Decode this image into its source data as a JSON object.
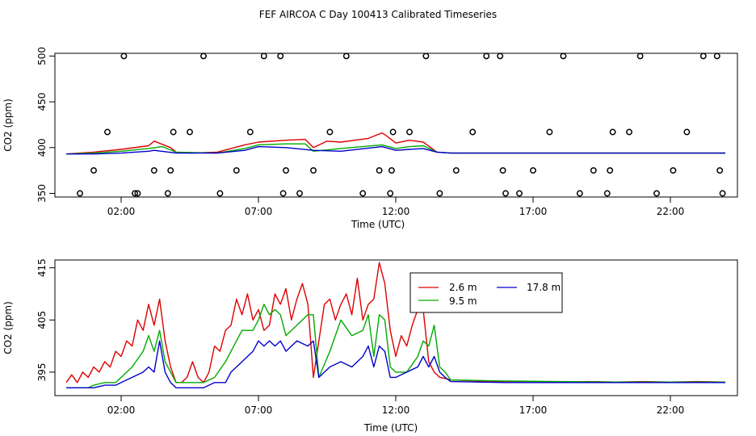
{
  "title": "FEF AIRCOA C  Day 100413  Calibrated Timeseries",
  "colors": {
    "s1": "#dd0000",
    "s2": "#00aa00",
    "s3": "#0000cc",
    "axis": "#000000"
  },
  "chart_data": [
    {
      "type": "line",
      "panel": "top",
      "xlabel": "Time (UTC)",
      "ylabel": "CO2 (ppm)",
      "xlim": [
        0,
        24
      ],
      "ylim": [
        346,
        503
      ],
      "xticks": [
        2,
        7,
        12,
        17,
        22
      ],
      "xtick_labels": [
        "02:00",
        "07:00",
        "12:00",
        "17:00",
        "22:00"
      ],
      "yticks": [
        350,
        400,
        450,
        500
      ],
      "ytick_labels": [
        "350",
        "400",
        "450",
        "500"
      ],
      "series": [
        {
          "name": "2.6 m",
          "color": "#dd0000",
          "x": [
            0,
            1,
            2,
            3,
            3.2,
            3.8,
            4,
            4.5,
            5.5,
            6.5,
            7,
            8,
            8.7,
            9,
            9.5,
            10,
            11,
            11.5,
            11.7,
            12,
            12.5,
            13,
            13.5,
            14,
            16,
            20,
            24
          ],
          "y": [
            393,
            395,
            398,
            402,
            407,
            400,
            395,
            394,
            395,
            403,
            406,
            408,
            409,
            400,
            407,
            406,
            410,
            416,
            412,
            405,
            408,
            406,
            395,
            394,
            394,
            394,
            394
          ]
        },
        {
          "name": "9.5 m",
          "color": "#00aa00",
          "x": [
            0,
            1,
            2,
            3,
            3.5,
            4,
            5.5,
            6.5,
            7,
            8,
            8.7,
            9,
            10,
            11.5,
            12,
            12.5,
            13,
            13.5,
            14,
            24
          ],
          "y": [
            393,
            394,
            396,
            399,
            401,
            395,
            394,
            399,
            403,
            404,
            404,
            396,
            399,
            403,
            399,
            401,
            402,
            395,
            394,
            394
          ]
        },
        {
          "name": "17.8 m",
          "color": "#0000cc",
          "x": [
            0,
            1,
            2,
            3,
            3.2,
            4,
            5.5,
            6.5,
            7,
            8,
            9,
            10,
            11.5,
            12,
            12.5,
            13,
            13.5,
            14,
            24
          ],
          "y": [
            393,
            393,
            394,
            396,
            397,
            394,
            394,
            397,
            401,
            400,
            397,
            396,
            401,
            397,
            398,
            399,
            395,
            394,
            394
          ]
        }
      ],
      "points": {
        "x": [
          0.5,
          1,
          1.5,
          2.1,
          2.5,
          2.6,
          3.2,
          3.7,
          3.8,
          3.9,
          4.5,
          5.0,
          5.6,
          6.2,
          6.7,
          7.2,
          7.8,
          7.9,
          8.0,
          8.5,
          9.0,
          9.6,
          10.2,
          10.8,
          11.4,
          11.8,
          11.85,
          11.9,
          12.5,
          13.1,
          13.6,
          14.2,
          14.8,
          15.3,
          15.8,
          15.9,
          16.0,
          16.5,
          17.0,
          17.6,
          18.1,
          18.7,
          19.2,
          19.7,
          19.8,
          19.9,
          20.5,
          20.9,
          21.5,
          22.1,
          22.6,
          23.2,
          23.7,
          23.8,
          23.9
        ],
        "y": [
          350,
          375,
          417,
          500,
          350,
          350,
          375,
          350,
          375,
          417,
          417,
          500,
          350,
          375,
          417,
          500,
          500,
          350,
          375,
          350,
          375,
          417,
          500,
          350,
          375,
          350,
          375,
          417,
          417,
          500,
          350,
          375,
          417,
          500,
          500,
          375,
          350,
          350,
          375,
          417,
          500,
          350,
          375,
          350,
          375,
          417,
          417,
          500,
          350,
          375,
          417,
          500,
          500,
          375,
          350
        ]
      }
    },
    {
      "type": "line",
      "panel": "bottom",
      "xlabel": "Time (UTC)",
      "ylabel": "CO2 (ppm)",
      "xlim": [
        0,
        24
      ],
      "ylim": [
        390.5,
        416.5
      ],
      "xticks": [
        2,
        7,
        12,
        17,
        22
      ],
      "xtick_labels": [
        "02:00",
        "07:00",
        "12:00",
        "17:00",
        "22:00"
      ],
      "yticks": [
        395,
        405,
        415
      ],
      "ytick_labels": [
        "395",
        "405",
        "415"
      ],
      "legend": {
        "placement": "top-center",
        "entries": [
          "2.6 m",
          "17.8 m",
          "9.5 m"
        ]
      },
      "series": [
        {
          "name": "2.6 m",
          "color": "#dd0000",
          "x": [
            0,
            0.2,
            0.4,
            0.6,
            0.8,
            1,
            1.2,
            1.4,
            1.6,
            1.8,
            2,
            2.2,
            2.4,
            2.6,
            2.8,
            3,
            3.2,
            3.4,
            3.6,
            3.8,
            4,
            4.2,
            4.4,
            4.6,
            4.8,
            5,
            5.2,
            5.4,
            5.6,
            5.8,
            6,
            6.2,
            6.4,
            6.6,
            6.8,
            7,
            7.2,
            7.4,
            7.6,
            7.8,
            8,
            8.2,
            8.4,
            8.6,
            8.8,
            9,
            9.2,
            9.4,
            9.6,
            9.8,
            10,
            10.2,
            10.4,
            10.6,
            10.8,
            11,
            11.2,
            11.4,
            11.6,
            11.8,
            12,
            12.2,
            12.4,
            12.6,
            12.8,
            13,
            13.2,
            13.4,
            13.6,
            13.8,
            14,
            15,
            16,
            17,
            18,
            19,
            20,
            21,
            22,
            23,
            24
          ],
          "y": [
            393,
            394.5,
            393,
            395,
            394,
            396,
            395,
            397,
            396,
            399,
            398,
            401,
            400,
            405,
            403,
            408,
            404,
            409,
            401,
            396,
            393,
            393,
            394,
            397,
            394,
            393,
            395,
            400,
            399,
            403,
            404,
            409,
            406,
            410,
            405,
            407,
            403,
            404,
            410,
            408,
            411,
            405,
            409,
            412,
            408,
            394,
            401,
            408,
            409,
            405,
            408,
            410,
            406,
            413,
            405,
            408,
            409,
            416,
            412,
            403,
            398,
            402,
            400,
            404,
            407,
            407,
            397,
            395,
            394,
            393.8,
            393.5,
            393.3,
            393.2,
            393.2,
            393.1,
            393.2,
            393.1,
            393.2,
            393.1,
            393.2,
            393.1
          ]
        },
        {
          "name": "9.5 m",
          "color": "#00aa00",
          "x": [
            0,
            0.4,
            0.8,
            1,
            1.4,
            1.8,
            2,
            2.4,
            2.8,
            3,
            3.2,
            3.4,
            3.6,
            3.8,
            4,
            4.4,
            4.8,
            5,
            5.4,
            5.8,
            6,
            6.4,
            6.8,
            7,
            7.2,
            7.4,
            7.6,
            7.8,
            8,
            8.4,
            8.8,
            9,
            9.2,
            9.6,
            10,
            10.4,
            10.8,
            11,
            11.2,
            11.4,
            11.6,
            11.8,
            12,
            12.4,
            12.8,
            13,
            13.2,
            13.4,
            13.6,
            13.8,
            14,
            16,
            18,
            20,
            22,
            24
          ],
          "y": [
            392,
            392,
            392,
            392.5,
            393,
            393,
            394,
            396,
            399,
            402,
            399,
            403,
            397,
            395,
            393,
            393,
            393,
            393,
            394,
            397,
            399,
            403,
            403,
            405,
            408,
            406,
            407,
            406,
            402,
            404,
            406,
            406,
            394,
            399,
            405,
            402,
            403,
            406,
            398,
            406,
            405,
            396,
            395,
            395,
            398,
            401,
            400,
            404,
            396,
            395,
            393.5,
            393.3,
            393.2,
            393.1,
            393.1,
            393.1
          ]
        },
        {
          "name": "17.8 m",
          "color": "#0000cc",
          "x": [
            0,
            0.4,
            0.8,
            1,
            1.4,
            1.8,
            2,
            2.4,
            2.8,
            3,
            3.2,
            3.4,
            3.6,
            3.8,
            4,
            4.4,
            4.8,
            5,
            5.4,
            5.8,
            6,
            6.4,
            6.8,
            7,
            7.2,
            7.4,
            7.6,
            7.8,
            8,
            8.4,
            8.8,
            9,
            9.2,
            9.6,
            10,
            10.4,
            10.8,
            11,
            11.2,
            11.4,
            11.6,
            11.8,
            12,
            12.4,
            12.8,
            13,
            13.2,
            13.4,
            13.6,
            13.8,
            14,
            16,
            18,
            20,
            22,
            24
          ],
          "y": [
            392,
            392,
            392,
            392,
            392.5,
            392.5,
            393,
            394,
            395,
            396,
            395,
            401,
            395,
            393,
            392,
            392,
            392,
            392,
            393,
            393,
            395,
            397,
            399,
            401,
            400,
            401,
            400,
            401,
            399,
            401,
            400,
            401,
            394,
            396,
            397,
            396,
            398,
            400,
            396,
            400,
            399,
            394,
            394,
            395,
            396,
            398,
            396,
            398,
            395,
            394,
            393.2,
            393,
            393,
            393,
            393,
            393
          ]
        }
      ]
    }
  ]
}
